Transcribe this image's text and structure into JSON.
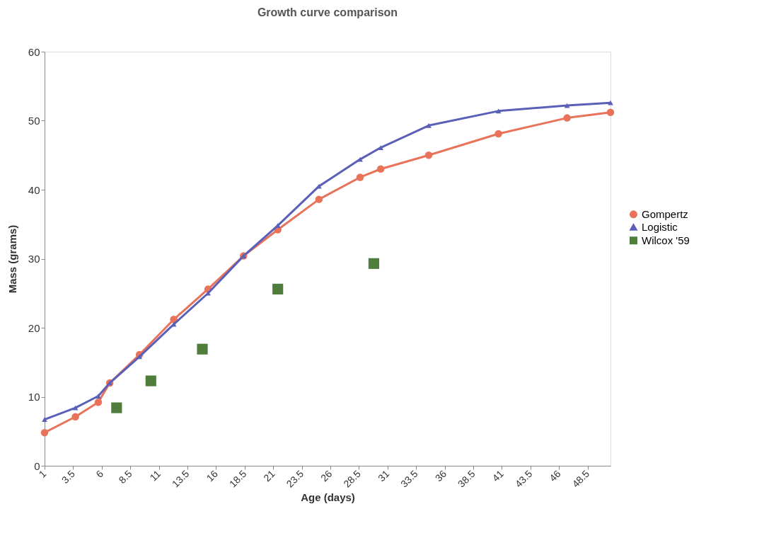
{
  "chart_data": {
    "type": "line",
    "title": "Growth curve comparison",
    "xlabel": "Age (days)",
    "ylabel": "Mass (grams)",
    "xlim": [
      1,
      50.5
    ],
    "xticks": [
      1,
      3.5,
      6,
      8.5,
      11,
      13.5,
      16,
      18.5,
      21,
      23.5,
      26,
      28.5,
      31,
      33.5,
      36,
      38.5,
      41,
      43.5,
      46,
      48.5
    ],
    "ylim": [
      0,
      60
    ],
    "yticks": [
      0,
      10,
      20,
      30,
      40,
      50,
      60
    ],
    "grid": false,
    "legend": "right",
    "line_style": "solid",
    "series": [
      {
        "name": "Gompertz",
        "marker": "circle",
        "color": "#e8735a",
        "x": [
          1,
          3.7,
          5.7,
          6.7,
          9.3,
          12.3,
          15.3,
          18.4,
          21.4,
          25,
          28.6,
          30.4,
          34.6,
          40.7,
          46.7,
          50.5
        ],
        "values": [
          4.8,
          7.1,
          9.2,
          12.0,
          16.1,
          21.2,
          25.6,
          30.4,
          34.2,
          38.6,
          41.8,
          43.0,
          45.0,
          48.1,
          50.4,
          51.2
        ]
      },
      {
        "name": "Logistic",
        "marker": "triangle",
        "color": "#5a5fb8",
        "x": [
          1,
          3.7,
          5.7,
          6.7,
          9.3,
          12.3,
          15.3,
          18.4,
          21.4,
          25,
          28.6,
          30.4,
          34.6,
          40.7,
          46.7,
          50.5
        ],
        "values": [
          6.7,
          8.4,
          10.1,
          12.0,
          15.8,
          20.5,
          25.0,
          30.4,
          34.8,
          40.5,
          44.4,
          46.1,
          49.3,
          51.4,
          52.2,
          52.6
        ]
      },
      {
        "name": "Wilcox '59",
        "type": "scatter",
        "marker": "square",
        "color": "#4e7d3c",
        "x": [
          7.3,
          10.3,
          14.8,
          21.4,
          29.8
        ],
        "values": [
          8.4,
          12.3,
          16.9,
          25.6,
          29.3
        ]
      }
    ]
  }
}
